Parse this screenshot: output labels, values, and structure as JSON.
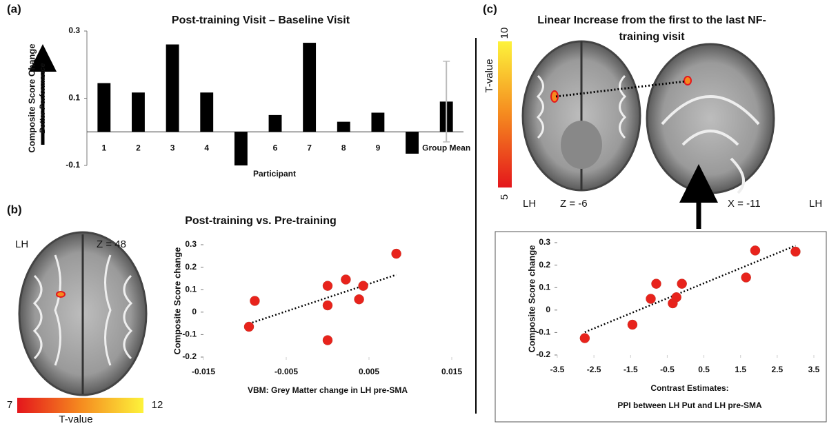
{
  "figure": {
    "panels": [
      "(a)",
      "(b)",
      "(c)"
    ],
    "brain_b": {
      "side": "LH",
      "slice": "Z = 48"
    },
    "brain_c": {
      "side_left": "LH",
      "slice_axial": "Z = -6",
      "slice_sagittal": "X = -11",
      "side_right": "LH"
    },
    "colorbars": [
      {
        "range": [
          7,
          12
        ],
        "label": "T-value"
      },
      {
        "range": [
          5,
          10
        ],
        "label": "T-value"
      }
    ]
  },
  "chart_data": [
    {
      "type": "bar",
      "title": "Post-training Visit – Baseline Visit",
      "ylabel": "Composite Score Change",
      "ylabel_note": "Better Performance",
      "xlabel": "Participant",
      "categories": [
        "1",
        "2",
        "3",
        "4",
        null,
        "6",
        "7",
        "8",
        "9",
        null,
        "Group Mean"
      ],
      "values": [
        0.145,
        0.117,
        0.26,
        0.117,
        -0.1,
        0.05,
        0.265,
        0.03,
        0.057,
        -0.065,
        0.09
      ],
      "errors": [
        null,
        null,
        null,
        null,
        null,
        null,
        null,
        null,
        null,
        null,
        0.12
      ],
      "color": "#000000",
      "error_color": "#bbbbbb",
      "ylim": [
        -0.1,
        0.3
      ],
      "yticks": [
        -0.1,
        0.1,
        0.3
      ]
    },
    {
      "type": "scatter",
      "title": "Post-training vs. Pre-training",
      "ylabel": "Composite Score change",
      "xlabel": [
        "VBM: Grey Matter change in LH pre-SMA"
      ],
      "x": [
        -0.0095,
        -0.0088,
        0.0,
        0.0,
        0.0,
        0.0022,
        0.0038,
        0.0043,
        0.0083
      ],
      "values": [
        -0.065,
        0.05,
        0.117,
        0.03,
        -0.125,
        0.145,
        0.057,
        0.117,
        0.26
      ],
      "color": "#e8231c",
      "trendline": true,
      "xlim": [
        -0.015,
        0.015
      ],
      "xticks": [
        -0.015,
        -0.005,
        0.005,
        0.015
      ],
      "ylim": [
        -0.2,
        0.3
      ],
      "yticks": [
        -0.2,
        -0.1,
        0,
        0.1,
        0.2,
        0.3
      ]
    },
    {
      "type": "scatter",
      "title": [
        "Linear Increase from the first to the last NF-",
        "training visit"
      ],
      "ylabel": "Composite Score change",
      "xlabel": [
        "Contrast Estimates:",
        "PPI between LH Put and LH pre-SMA"
      ],
      "x": [
        -2.75,
        -1.45,
        -0.95,
        -0.8,
        -0.35,
        -0.25,
        -0.1,
        1.65,
        1.9,
        3.0
      ],
      "values": [
        -0.125,
        -0.065,
        0.05,
        0.117,
        0.03,
        0.057,
        0.117,
        0.145,
        0.265,
        0.26
      ],
      "color": "#e8231c",
      "trendline": true,
      "xlim": [
        -3.5,
        3.5
      ],
      "xticks": [
        -3.5,
        -2.5,
        -1.5,
        -0.5,
        0.5,
        1.5,
        2.5,
        3.5
      ],
      "ylim": [
        -0.2,
        0.3
      ],
      "yticks": [
        -0.2,
        -0.1,
        0,
        0.1,
        0.2,
        0.3
      ]
    }
  ]
}
